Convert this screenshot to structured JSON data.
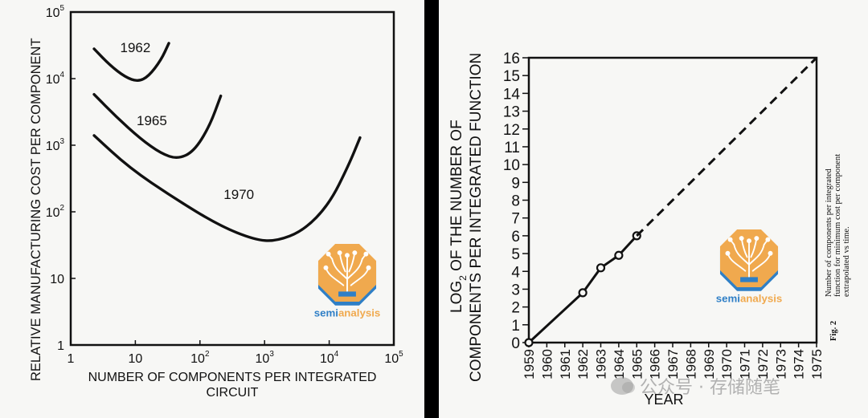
{
  "chart_data": [
    {
      "type": "line",
      "title": "",
      "ylabel": "RELATIVE MANUFACTURING COST PER COMPONENT",
      "xlabel": "NUMBER OF COMPONENTS PER INTEGRATED CIRCUIT",
      "x_scale": "log",
      "y_scale": "log",
      "xlim": [
        1,
        100000
      ],
      "ylim": [
        1,
        100000
      ],
      "x_ticks": [
        {
          "value": 1,
          "base": "1",
          "exp": ""
        },
        {
          "value": 10,
          "base": "10",
          "exp": ""
        },
        {
          "value": 100,
          "base": "10",
          "exp": "2"
        },
        {
          "value": 1000,
          "base": "10",
          "exp": "3"
        },
        {
          "value": 10000,
          "base": "10",
          "exp": "4"
        },
        {
          "value": 100000,
          "base": "10",
          "exp": "5"
        }
      ],
      "y_ticks": [
        {
          "value": 1,
          "base": "1",
          "exp": ""
        },
        {
          "value": 10,
          "base": "10",
          "exp": ""
        },
        {
          "value": 100,
          "base": "10",
          "exp": "2"
        },
        {
          "value": 1000,
          "base": "10",
          "exp": "3"
        },
        {
          "value": 10000,
          "base": "10",
          "exp": "4"
        },
        {
          "value": 100000,
          "base": "10",
          "exp": "5"
        }
      ],
      "series": [
        {
          "name": "1962",
          "label": "1962",
          "label_at": [
            10,
            25000
          ],
          "points": [
            [
              2.3,
              28000
            ],
            [
              4,
              16000
            ],
            [
              7,
              10500
            ],
            [
              11,
              9000
            ],
            [
              16,
              10800
            ],
            [
              25,
              19000
            ],
            [
              33,
              34000
            ]
          ]
        },
        {
          "name": "1965",
          "label": "1965",
          "label_at": [
            18,
            2000
          ],
          "points": [
            [
              2.3,
              5800
            ],
            [
              5,
              2700
            ],
            [
              12,
              1250
            ],
            [
              25,
              750
            ],
            [
              45,
              620
            ],
            [
              80,
              800
            ],
            [
              140,
              1900
            ],
            [
              210,
              5500
            ]
          ]
        },
        {
          "name": "1970",
          "label": "1970",
          "label_at": [
            400,
            155
          ],
          "points": [
            [
              2.3,
              1400
            ],
            [
              8,
              460
            ],
            [
              40,
              160
            ],
            [
              200,
              62
            ],
            [
              700,
              38
            ],
            [
              1500,
              36
            ],
            [
              4000,
              52
            ],
            [
              10000,
              130
            ],
            [
              20000,
              500
            ],
            [
              30000,
              1300
            ]
          ]
        }
      ]
    },
    {
      "type": "line",
      "ylabel_main": "LOG",
      "ylabel_sub": "2",
      "ylabel_rest": "OF THE NUMBER OF",
      "ylabel_line2": "COMPONENTS PER INTEGRATED FUNCTION",
      "xlabel": "YEAR",
      "x_ticks": [
        "1959",
        "1960",
        "1961",
        "1962",
        "1963",
        "1964",
        "1965",
        "1966",
        "1967",
        "1968",
        "1969",
        "1970",
        "1971",
        "1972",
        "1973",
        "1974",
        "1975"
      ],
      "y_ticks": [
        "0",
        "1",
        "2",
        "3",
        "4",
        "5",
        "6",
        "7",
        "8",
        "9",
        "10",
        "11",
        "12",
        "13",
        "14",
        "15",
        "16"
      ],
      "xlim": [
        1959,
        1975
      ],
      "ylim": [
        0,
        16
      ],
      "series": [
        {
          "name": "measured",
          "style": "solid-markers",
          "x": [
            1959,
            1962,
            1963,
            1964,
            1965
          ],
          "y": [
            0,
            2.8,
            4.2,
            4.9,
            6.0
          ]
        },
        {
          "name": "extrapolated",
          "style": "dashed",
          "x": [
            1965,
            1975
          ],
          "y": [
            6.0,
            16.0
          ]
        }
      ],
      "caption_fig": "Fig. 2",
      "caption_lines": [
        "Number of components per integrated",
        "function for minimum cost per component",
        "extrapolated vs time."
      ]
    }
  ],
  "logo": {
    "text_a": "semi",
    "text_b": "analysis",
    "colors": {
      "orange": "#f0a94e",
      "blue": "#2f7fc6",
      "white": "#ffffff"
    }
  },
  "watermark": {
    "text": "公众号 · 存储随笔",
    "icon": "wechat-icon"
  }
}
